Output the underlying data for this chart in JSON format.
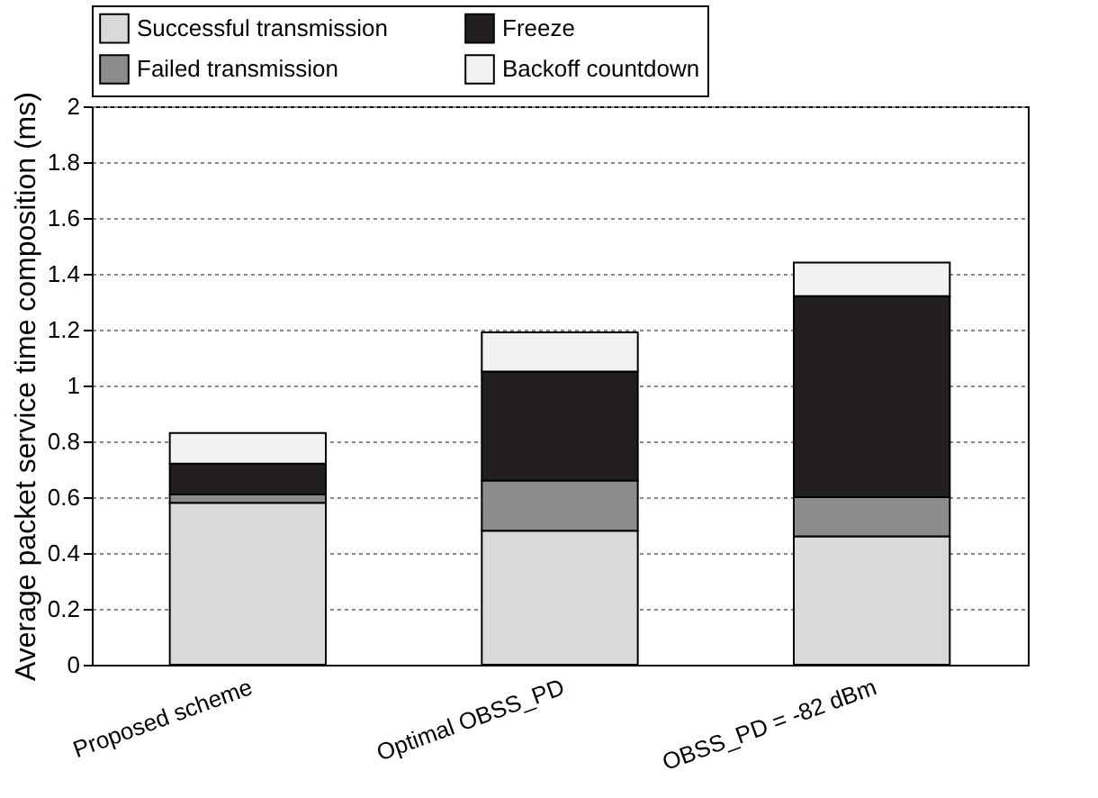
{
  "chart_data": {
    "type": "bar",
    "ylabel": "Average packet service time composition (ms)",
    "categories": [
      "Proposed scheme",
      "Optimal OBSS_PD",
      "OBSS_PD = -82 dBm"
    ],
    "stacked": true,
    "series": [
      {
        "name": "Successful transmission",
        "color": "#d9d9d9",
        "values": [
          0.58,
          0.48,
          0.46
        ]
      },
      {
        "name": "Failed transmission",
        "color": "#8c8c8c",
        "values": [
          0.03,
          0.18,
          0.14
        ]
      },
      {
        "name": "Freeze",
        "color": "#231f20",
        "values": [
          0.11,
          0.39,
          0.72
        ]
      },
      {
        "name": "Backoff countdown",
        "color": "#f2f2f2",
        "values": [
          0.11,
          0.14,
          0.12
        ]
      }
    ],
    "ylim": [
      0,
      2
    ],
    "yticks": [
      0,
      0.2,
      0.4,
      0.6,
      0.8,
      1,
      1.2,
      1.4,
      1.6,
      1.8,
      2
    ],
    "grid": "y",
    "legend": "top"
  }
}
